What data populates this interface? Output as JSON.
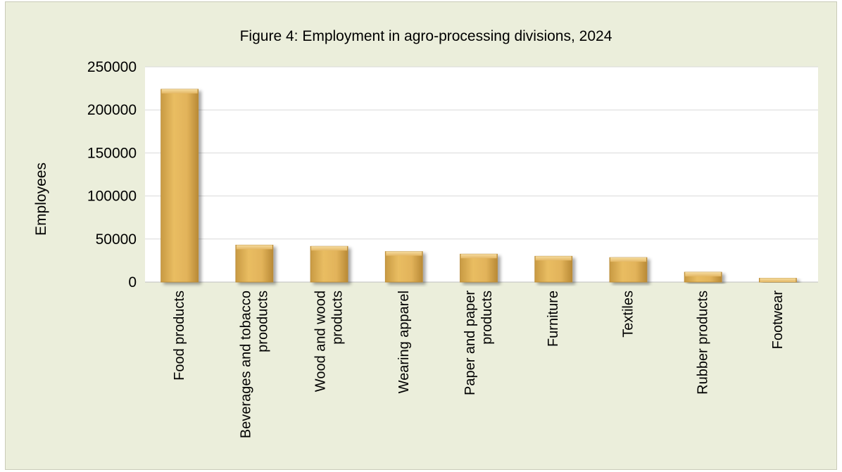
{
  "chart_data": {
    "type": "bar",
    "title": "Figure 4: Employment in agro-processing divisions, 2024",
    "xlabel": "",
    "ylabel": "Employees",
    "ylim": [
      0,
      250000
    ],
    "yticks": [
      0,
      50000,
      100000,
      150000,
      200000,
      250000
    ],
    "grid": true,
    "categories": [
      [
        "Food products"
      ],
      [
        "Beverages and tobacco",
        "prooducts"
      ],
      [
        "Wood and wood",
        "products"
      ],
      [
        "Wearing apparel"
      ],
      [
        "Paper and paper",
        "products"
      ],
      [
        "Furniture"
      ],
      [
        "Textiles"
      ],
      [
        "Rubber products"
      ],
      [
        "Footwear"
      ]
    ],
    "values": [
      224000,
      43000,
      41500,
      35500,
      32500,
      30000,
      28500,
      11500,
      4500
    ],
    "colors": {
      "bar": "#e2b35a",
      "bar_light": "#f3d491",
      "bar_dark": "#b98a36",
      "plot_bg": "#ffffff",
      "frame_bg": "#ebeedb",
      "grid": "#d9d9d9"
    }
  }
}
